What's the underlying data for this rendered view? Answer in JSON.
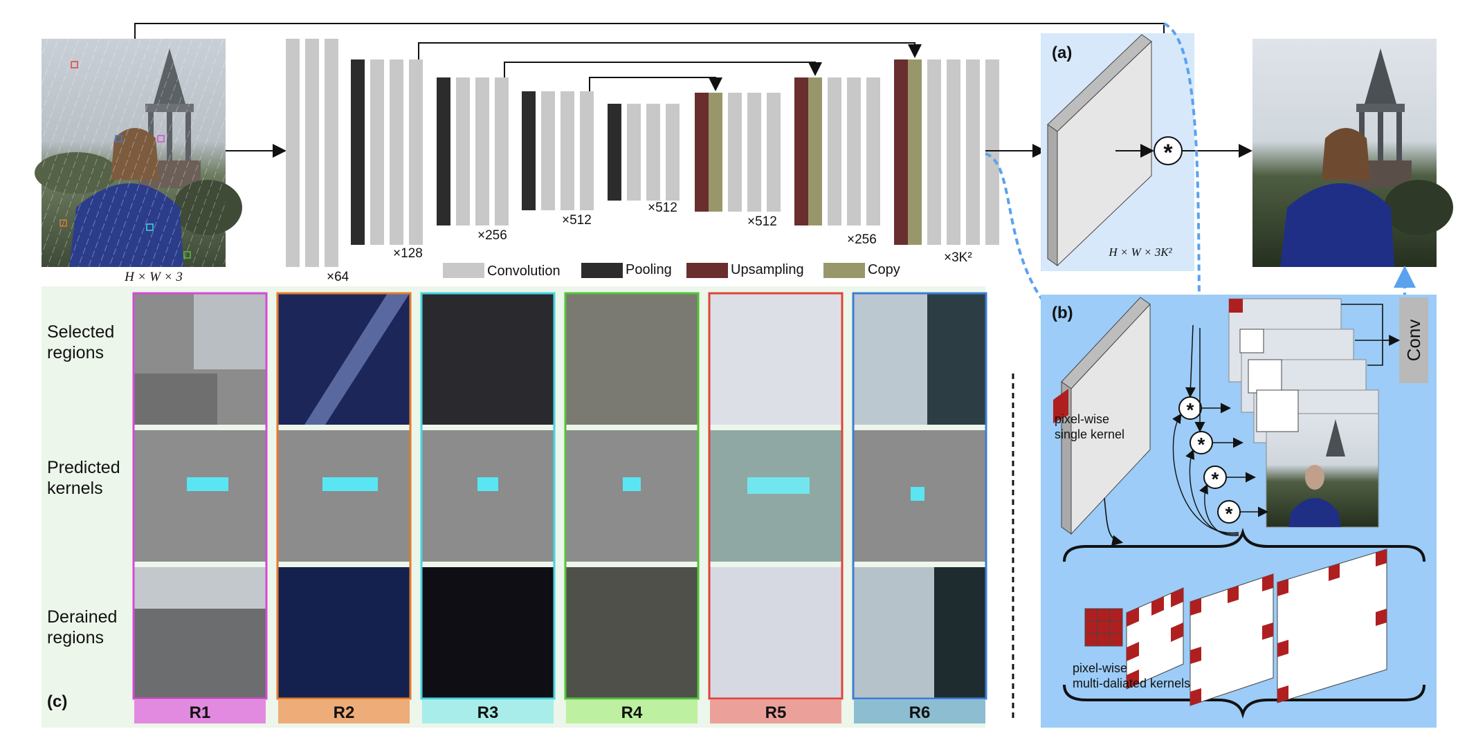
{
  "legend": {
    "convolution": "Convolution",
    "pooling": "Pooling",
    "upsampling": "Upsampling",
    "copy": "Copy"
  },
  "unet": {
    "channels": [
      "×64",
      "×128",
      "×256",
      "×512",
      "×512",
      "×512",
      "×256",
      "×3K²"
    ]
  },
  "input_size": "H × W × 3",
  "kernel_map_size": "H × W × 3K²",
  "panel_a": {
    "label": "(a)"
  },
  "panel_b": {
    "label": "(b)",
    "conv": "Conv",
    "single_kernel": [
      "pixel-wise",
      "single kernel"
    ],
    "multi_kernel": [
      "pixel-wise",
      "multi-daliated kernels"
    ],
    "operator": "*"
  },
  "panel_c": {
    "label": "(c)",
    "row_labels": [
      [
        "Selected",
        "regions"
      ],
      [
        "Predicted",
        "kernels"
      ],
      [
        "Derained",
        "regions"
      ]
    ],
    "columns": [
      "R1",
      "R2",
      "R3",
      "R4",
      "R5",
      "R6"
    ]
  },
  "colors": {
    "convolution": "#c8c8c8",
    "pooling": "#2c2c2c",
    "upsampling": "#6a2e2e",
    "copy": "#98976b",
    "panel_a_bg": "#d6e8fa",
    "panel_b_bg": "#9cccf7",
    "panel_c_bg": "#ecf6ea",
    "kernel_cell": "#b01f1f",
    "r1": "#e28ae0",
    "r2": "#eeac78",
    "r3": "#a8ede9",
    "r4": "#bdf0a0",
    "r5": "#eba19a",
    "r6": "#8dbdd1"
  }
}
